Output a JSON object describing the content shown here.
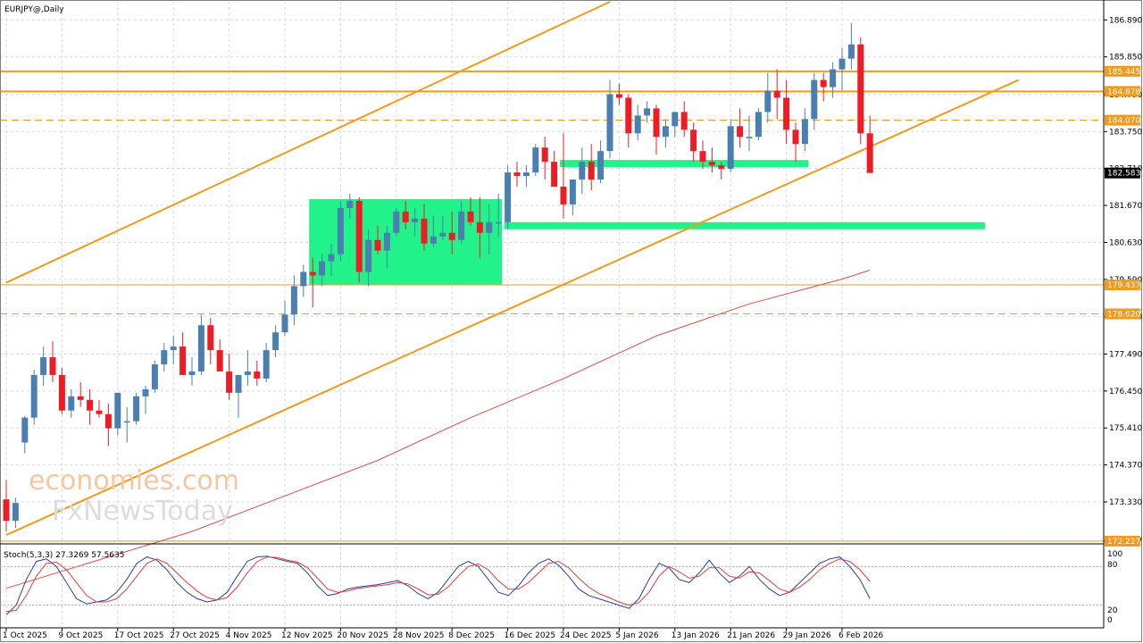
{
  "chart_data": {
    "type": "candlestick",
    "title": "EURJPY@,Daily",
    "symbol": "EURJPY@",
    "timeframe": "Daily",
    "current_price": 182.583,
    "ylim": [
      172.2,
      187.4
    ],
    "y_ticks": [
      "186.890",
      "185.850",
      "184.790",
      "183.750",
      "182.710",
      "181.670",
      "180.630",
      "179.590",
      "178.550",
      "177.490",
      "176.450",
      "175.410",
      "174.370",
      "173.330",
      "172.227"
    ],
    "x_ticks": [
      {
        "label": "1 Oct 2025",
        "i": 0
      },
      {
        "label": "9 Oct 2025",
        "i": 6
      },
      {
        "label": "17 Oct 2025",
        "i": 12
      },
      {
        "label": "27 Oct 2025",
        "i": 18
      },
      {
        "label": "4 Nov 2025",
        "i": 24
      },
      {
        "label": "12 Nov 2025",
        "i": 30
      },
      {
        "label": "20 Nov 2025",
        "i": 36
      },
      {
        "label": "28 Nov 2025",
        "i": 42
      },
      {
        "label": "8 Dec 2025",
        "i": 48
      },
      {
        "label": "16 Dec 2025",
        "i": 54
      },
      {
        "label": "24 Dec 2025",
        "i": 60
      },
      {
        "label": "5 Jan 2026",
        "i": 66
      },
      {
        "label": "13 Jan 2026",
        "i": 72
      },
      {
        "label": "21 Jan 2026",
        "i": 78
      },
      {
        "label": "29 Jan 2026",
        "i": 84
      },
      {
        "label": "6 Feb 2026",
        "i": 90
      }
    ],
    "candles": [
      [
        173.4,
        173.95,
        172.5,
        172.8
      ],
      [
        172.8,
        173.45,
        172.6,
        173.3
      ],
      [
        175.0,
        175.75,
        174.7,
        175.7
      ],
      [
        175.7,
        177.05,
        175.5,
        176.9
      ],
      [
        176.9,
        177.7,
        176.6,
        177.4
      ],
      [
        177.4,
        177.85,
        176.7,
        176.9
      ],
      [
        176.9,
        177.1,
        175.8,
        175.9
      ],
      [
        175.9,
        176.5,
        175.7,
        176.3
      ],
      [
        176.3,
        176.7,
        176.0,
        176.2
      ],
      [
        176.2,
        176.5,
        175.5,
        175.9
      ],
      [
        175.9,
        176.2,
        175.7,
        175.8
      ],
      [
        175.8,
        176.1,
        174.9,
        175.4
      ],
      [
        175.4,
        176.4,
        175.2,
        176.4
      ],
      [
        175.6,
        176.0,
        175.0,
        175.6
      ],
      [
        175.6,
        176.4,
        175.5,
        176.3
      ],
      [
        176.3,
        176.6,
        175.8,
        176.5
      ],
      [
        176.5,
        177.3,
        176.4,
        177.2
      ],
      [
        177.2,
        177.8,
        177.0,
        177.6
      ],
      [
        177.6,
        178.0,
        177.2,
        177.7
      ],
      [
        177.7,
        178.1,
        176.9,
        176.9
      ],
      [
        176.9,
        177.4,
        176.6,
        177.0
      ],
      [
        177.0,
        178.6,
        176.9,
        178.3
      ],
      [
        178.3,
        178.5,
        177.2,
        177.6
      ],
      [
        177.6,
        177.9,
        177.0,
        177.0
      ],
      [
        177.0,
        177.5,
        176.2,
        176.4
      ],
      [
        176.4,
        176.9,
        175.7,
        176.9
      ],
      [
        176.9,
        177.6,
        176.6,
        177.0
      ],
      [
        177.0,
        177.3,
        176.6,
        176.8
      ],
      [
        176.8,
        177.8,
        176.7,
        177.6
      ],
      [
        177.6,
        178.3,
        177.4,
        178.1
      ],
      [
        178.1,
        179.0,
        178.0,
        178.6
      ],
      [
        178.6,
        179.7,
        178.3,
        179.4
      ],
      [
        179.4,
        180.0,
        179.1,
        179.8
      ],
      [
        179.8,
        180.2,
        178.8,
        179.7
      ],
      [
        179.7,
        180.3,
        179.4,
        180.1
      ],
      [
        180.1,
        180.6,
        179.7,
        180.3
      ],
      [
        180.3,
        181.8,
        180.1,
        181.6
      ],
      [
        181.6,
        182.0,
        181.3,
        181.8
      ],
      [
        181.8,
        181.9,
        179.5,
        179.8
      ],
      [
        179.8,
        181.0,
        179.4,
        180.7
      ],
      [
        180.7,
        181.1,
        180.3,
        180.4
      ],
      [
        180.4,
        181.1,
        179.9,
        180.9
      ],
      [
        180.9,
        181.6,
        180.8,
        181.5
      ],
      [
        181.5,
        181.8,
        181.0,
        181.2
      ],
      [
        181.2,
        181.6,
        180.8,
        181.3
      ],
      [
        181.3,
        181.7,
        180.4,
        180.6
      ],
      [
        180.6,
        181.4,
        180.5,
        180.8
      ],
      [
        180.8,
        181.4,
        180.7,
        180.9
      ],
      [
        180.9,
        181.5,
        180.3,
        180.7
      ],
      [
        180.7,
        181.8,
        180.6,
        181.5
      ],
      [
        181.5,
        181.9,
        181.1,
        181.2
      ],
      [
        181.2,
        181.9,
        180.2,
        180.9
      ],
      [
        180.9,
        181.7,
        180.3,
        181.2
      ],
      [
        181.2,
        182.0,
        180.8,
        181.2
      ],
      [
        181.2,
        182.8,
        181.0,
        182.6
      ],
      [
        182.6,
        182.9,
        182.2,
        182.5
      ],
      [
        182.5,
        182.8,
        182.2,
        182.6
      ],
      [
        182.6,
        183.4,
        182.5,
        183.3
      ],
      [
        183.3,
        183.6,
        182.4,
        182.9
      ],
      [
        182.9,
        183.2,
        182.3,
        182.2
      ],
      [
        182.2,
        183.7,
        181.3,
        181.7
      ],
      [
        181.7,
        182.4,
        181.4,
        182.4
      ],
      [
        182.4,
        183.3,
        182.0,
        182.9
      ],
      [
        182.9,
        183.4,
        182.1,
        182.4
      ],
      [
        182.4,
        183.5,
        182.3,
        183.2
      ],
      [
        183.2,
        185.2,
        183.0,
        184.8
      ],
      [
        184.8,
        185.1,
        184.5,
        184.7
      ],
      [
        184.7,
        184.8,
        183.3,
        183.7
      ],
      [
        183.7,
        184.5,
        183.5,
        184.2
      ],
      [
        184.2,
        184.6,
        184.0,
        184.4
      ],
      [
        184.4,
        184.5,
        183.1,
        183.6
      ],
      [
        183.6,
        184.1,
        183.3,
        183.9
      ],
      [
        183.9,
        184.2,
        183.6,
        184.3
      ],
      [
        184.3,
        184.6,
        183.6,
        183.8
      ],
      [
        183.8,
        184.0,
        182.9,
        183.2
      ],
      [
        183.2,
        183.5,
        182.7,
        182.9
      ],
      [
        182.9,
        183.3,
        182.6,
        182.8
      ],
      [
        182.8,
        182.9,
        182.4,
        182.7
      ],
      [
        182.7,
        184.1,
        182.6,
        183.9
      ],
      [
        183.9,
        184.4,
        183.3,
        183.6
      ],
      [
        183.6,
        184.2,
        183.2,
        183.6
      ],
      [
        183.6,
        184.4,
        183.5,
        184.3
      ],
      [
        184.3,
        185.4,
        184.0,
        184.9
      ],
      [
        184.9,
        185.5,
        184.1,
        184.7
      ],
      [
        184.7,
        185.2,
        183.4,
        183.8
      ],
      [
        183.8,
        184.0,
        182.9,
        183.4
      ],
      [
        183.4,
        184.4,
        183.2,
        184.1
      ],
      [
        184.1,
        185.4,
        183.8,
        185.2
      ],
      [
        185.2,
        185.4,
        184.6,
        185.0
      ],
      [
        185.0,
        185.7,
        184.7,
        185.5
      ],
      [
        185.5,
        186.1,
        184.9,
        185.8
      ],
      [
        185.8,
        186.8,
        185.5,
        186.2
      ],
      [
        186.2,
        186.4,
        183.4,
        183.7
      ],
      [
        183.7,
        184.2,
        182.6,
        182.583
      ]
    ],
    "sma_red": {
      "i": [
        0,
        10,
        20,
        30,
        40,
        50,
        60,
        70,
        80,
        90,
        93
      ],
      "v": [
        170.9,
        171.7,
        172.5,
        173.5,
        174.5,
        175.7,
        176.8,
        178.0,
        178.9,
        179.6,
        179.85
      ]
    },
    "channel_upper": {
      "i": [
        0,
        65
      ],
      "v": [
        179.5,
        187.4
      ]
    },
    "channel_lower": {
      "i": [
        0,
        109
      ],
      "v": [
        172.4,
        185.2
      ]
    },
    "levels": [
      {
        "value": "185.445",
        "style": "solid",
        "tag": true
      },
      {
        "value": "184.878",
        "style": "solid",
        "tag": true
      },
      {
        "value": "184.070",
        "style": "dashed",
        "tag": true
      },
      {
        "value": "179.437",
        "style": "thin",
        "tag": true
      },
      {
        "value": "178.620",
        "style": "dashed",
        "tag": true
      },
      {
        "value": "172.227",
        "style": "thin",
        "tag": true
      }
    ],
    "zones": [
      {
        "i0": 33,
        "i1": 53,
        "v0": 179.45,
        "v1": 181.85
      },
      {
        "i0": 60,
        "i1": 86,
        "v0": 182.75,
        "v1": 182.95
      },
      {
        "i0": 54,
        "i1": 105,
        "v0": 181.0,
        "v1": 181.2
      }
    ],
    "stochastic": {
      "label": "Stoch(5,3,3) 27.3269 57.5635",
      "k_value": 27.3269,
      "d_value": 57.5635,
      "levels": [
        "100",
        "80",
        "20",
        "0"
      ],
      "k": [
        5,
        20,
        60,
        88,
        92,
        80,
        55,
        30,
        22,
        25,
        28,
        40,
        60,
        85,
        95,
        90,
        75,
        55,
        40,
        30,
        25,
        28,
        40,
        65,
        88,
        95,
        96,
        92,
        88,
        85,
        70,
        50,
        35,
        38,
        45,
        48,
        50,
        52,
        55,
        58,
        50,
        38,
        30,
        40,
        60,
        80,
        88,
        80,
        60,
        40,
        35,
        50,
        70,
        85,
        92,
        82,
        65,
        45,
        35,
        30,
        25,
        20,
        15,
        30,
        60,
        85,
        78,
        60,
        55,
        70,
        90,
        70,
        55,
        65,
        80,
        60,
        45,
        35,
        40,
        55,
        70,
        85,
        92,
        95,
        80,
        60,
        30
      ],
      "d": [
        10,
        12,
        35,
        65,
        85,
        87,
        75,
        55,
        35,
        25,
        25,
        30,
        45,
        65,
        85,
        92,
        85,
        70,
        55,
        42,
        32,
        28,
        32,
        48,
        70,
        88,
        95,
        94,
        90,
        87,
        78,
        62,
        45,
        40,
        42,
        46,
        48,
        50,
        52,
        55,
        53,
        45,
        36,
        37,
        48,
        65,
        80,
        84,
        75,
        58,
        45,
        45,
        55,
        70,
        85,
        88,
        78,
        62,
        48,
        38,
        32,
        25,
        20,
        24,
        40,
        65,
        80,
        72,
        62,
        65,
        78,
        78,
        65,
        62,
        72,
        70,
        58,
        45,
        40,
        48,
        60,
        75,
        85,
        92,
        88,
        75,
        57
      ]
    }
  },
  "watermark": {
    "line1": "economies.com",
    "line2": "FxNewsToday"
  },
  "colors": {
    "bull": "#4a7fb0",
    "bear": "#ee1c25",
    "orange": "#f39a1e",
    "green": "#22f28a",
    "sma": "#e34b4b",
    "grid": "#cfdde8",
    "stoch_k": "#2a3f9a",
    "stoch_d": "#e33b3b"
  }
}
